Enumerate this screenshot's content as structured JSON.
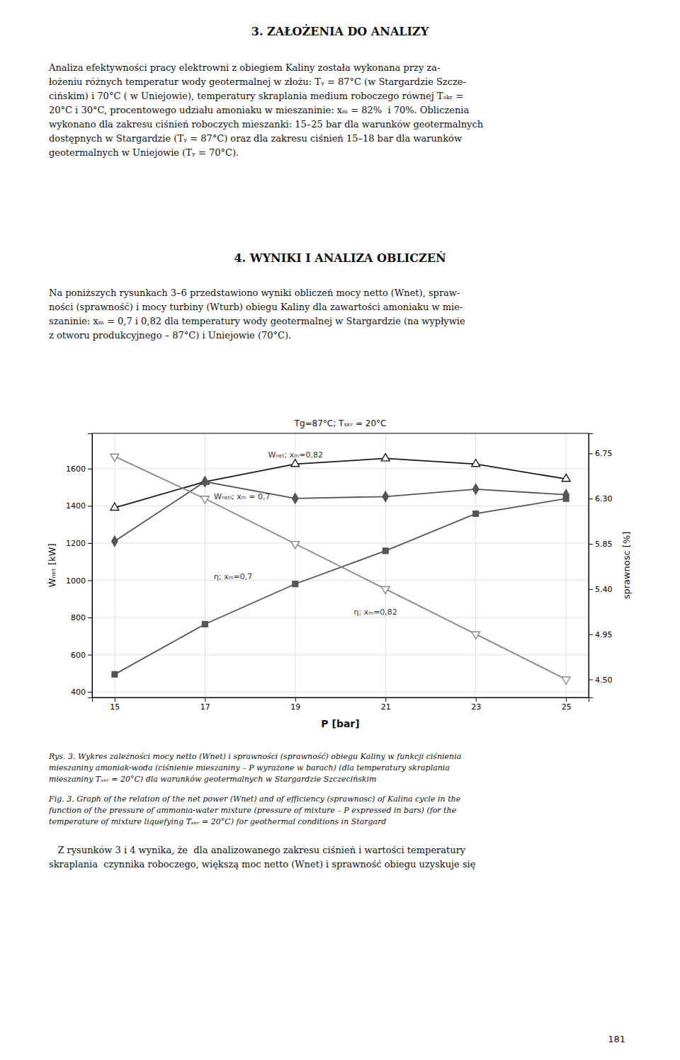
{
  "chart_data": {
    "type": "line",
    "title": "Tg=87°C; Tₛₖᵣ = 20°C",
    "xlabel": "P [bar]",
    "ylabel": "Ẇₙₑₜ [kW]",
    "y2label": "sprawnosc [%]",
    "xlim": [
      14.5,
      25.5
    ],
    "ylim": [
      370,
      1790
    ],
    "y2lim": [
      4.32,
      6.95
    ],
    "xticks": [
      15,
      17,
      19,
      21,
      23,
      25
    ],
    "yticks": [
      400,
      600,
      800,
      1000,
      1200,
      1400,
      1600
    ],
    "y2ticks": [
      {
        "value": 4.5,
        "label": "4.50"
      },
      4.95,
      {
        "value": 5.4,
        "label": "5.40"
      },
      5.85,
      {
        "value": 6.3,
        "label": "6.30"
      },
      6.75
    ],
    "grid": true,
    "x": [
      15,
      17,
      19,
      21,
      23,
      25
    ],
    "series": [
      {
        "color": "#1a1a1a",
        "marker": "triangle-up-open",
        "values": [
          1390,
          1530,
          1625,
          1655,
          1625,
          1545
        ]
      },
      {
        "color": "#555555",
        "marker": "diamond",
        "values": [
          1210,
          1530,
          1440,
          1450,
          1490,
          1460
        ]
      },
      {
        "color": "#555555",
        "marker": "square",
        "axis": "y2",
        "values": [
          4.55,
          5.05,
          5.45,
          5.78,
          6.15,
          6.3
        ]
      },
      {
        "color": "#888888",
        "marker": "triangle-down-open",
        "axis": "y2",
        "values": [
          6.72,
          6.3,
          5.85,
          5.4,
          4.95,
          4.5
        ]
      }
    ],
    "annotations": [
      {
        "text": "Wₙₑₜ; xₘ=0,82",
        "x": 18.4,
        "y": 1660
      },
      {
        "text": "Wₙₑₜᵢ; xₘ = 0,7",
        "x": 17.2,
        "y": 1435
      },
      {
        "text": "η; xₘ=0,7",
        "x": 17.2,
        "y": 1005
      },
      {
        "text": "η; xₘ=0,82",
        "x": 20.3,
        "y": 815
      }
    ]
  },
  "page": {
    "headings": [
      "3. ZAŁOŻENIA DO ANALIZY",
      "4. WYNIKI I ANALIZA OBLICZEŃ"
    ],
    "paragraphs": [
      [
        "Analiza efektywności pracy elektrowni z obiegiem Kaliny została wykonana przy za-",
        "łożeniu różnych temperatur wody geotermalnej w złożu: Tᵧ = 87°C (w Stargardzie Szcze-",
        "cińskim) i 70°C ( w Uniejowie), temperatury skraplania medium roboczego równej Tₛₖᵣ =",
        "20°C i 30°C, procentowego udziału amoniaku w mieszaninie: xₘ = 82%  i 70%. Obliczenia",
        "wykonano dla zakresu ciśnień roboczych mieszanki: 15–25 bar dla warunków geotermalnych",
        "dostępnych w Stargardzie (Tᵧ = 87°C) oraz dla zakresu ciśnień 15–18 bar dla warunków",
        "geotermalnych w Uniejowie (Tᵧ = 70°C)."
      ],
      [
        "Na poniższych rysunkach 3–6 przedstawiono wyniki obliczeń mocy netto (Wnet), spraw-",
        "ności (sprawność) i mocy turbiny (Wturb) obiegu Kaliny dla zawartości amoniaku w mie-",
        "szaninie: xₘ = 0,7 i 0,82 dla temperatury wody geotermalnej w Stargardzie (na wypływie",
        "z otworu produkcyjnego – 87°C) i Uniejowie (70°C)."
      ]
    ],
    "captions": [
      [
        "Rys. 3. Wykres zależności mocy netto (Wnet) i sprawności (sprawność) obiegu Kaliny w funkcji ciśnienia",
        "mieszaniny amoniak-woda (ciśnienie mieszaniny – P wyrażone w barach) (dla temperatury skraplania",
        "mieszaniny Tₛₖᵣ = 20°C) dla warunków geotermalnych w Stargardzie Szczecińskim"
      ],
      [
        "Fig. 3. Graph of the relation of the net power (Wnet) and of efficiency (sprawnosc) of Kalina cycle in the",
        "function of the pressure of ammonia-water mixture (pressure of mixture – P expressed in bars) (for the",
        "temperature of mixture liquefying Tₛₖᵣ = 20°C) for geothermal conditions in Stargard"
      ]
    ],
    "closing_paragraph": [
      "   Z rysunków 3 i 4 wynika, że  dla analizowanego zakresu ciśnień i wartości temperatury",
      "skraplania  czynnika roboczego, większą moc netto (Wnet) i sprawność obiegu uzyskuje się"
    ],
    "page_number": "181"
  }
}
